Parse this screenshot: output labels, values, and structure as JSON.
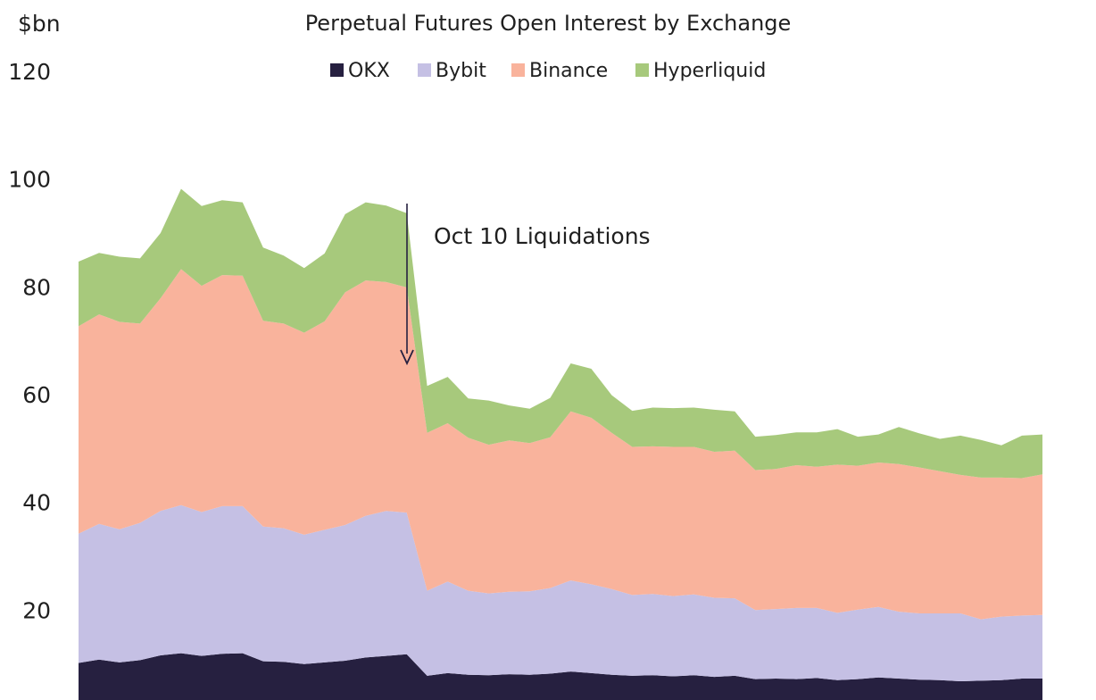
{
  "chart_data": {
    "type": "area",
    "stacked": true,
    "title": "Perpetual Futures Open Interest by Exchange",
    "ylabel": "$bn",
    "ylim": [
      0,
      120
    ],
    "yticks": [
      "20",
      "40",
      "60",
      "80",
      "100",
      "120"
    ],
    "ytick_values": [
      20,
      40,
      60,
      80,
      100,
      120
    ],
    "grid": false,
    "legend_position": "top-center",
    "annotation": {
      "text": "Oct 10 Liquidations",
      "arrow_to_index": 17,
      "arrow_to_value": 63
    },
    "series": [
      {
        "name": "OKX",
        "color": "#262040",
        "values": [
          10.2,
          10.8,
          10.3,
          10.7,
          11.6,
          12.0,
          11.5,
          11.9,
          12.0,
          10.5,
          10.4,
          10.0,
          10.3,
          10.6,
          11.2,
          11.5,
          11.8,
          7.8,
          8.3,
          8.0,
          7.9,
          8.1,
          8.0,
          8.2,
          8.6,
          8.3,
          8.0,
          7.8,
          7.9,
          7.7,
          7.9,
          7.6,
          7.8,
          7.2,
          7.3,
          7.2,
          7.4,
          7.0,
          7.2,
          7.5,
          7.3,
          7.1,
          7.0,
          6.8,
          6.9,
          7.0,
          7.3,
          7.3
        ]
      },
      {
        "name": "Bybit",
        "color": "#c5c0e4",
        "values": [
          24.0,
          25.2,
          24.7,
          25.5,
          26.8,
          27.5,
          26.7,
          27.4,
          27.3,
          25.0,
          24.8,
          24.0,
          24.6,
          25.2,
          26.3,
          26.9,
          26.3,
          15.8,
          17.0,
          15.6,
          15.2,
          15.3,
          15.5,
          15.9,
          16.9,
          16.5,
          15.9,
          15.0,
          15.1,
          14.9,
          15.0,
          14.7,
          14.4,
          12.8,
          12.9,
          13.2,
          13.0,
          12.5,
          12.9,
          13.1,
          12.4,
          12.3,
          12.4,
          12.6,
          11.4,
          11.8,
          11.7,
          11.8
        ]
      },
      {
        "name": "Binance",
        "color": "#f9b39c",
        "values": [
          38.5,
          38.9,
          38.5,
          37.0,
          39.5,
          43.8,
          42.0,
          42.9,
          42.8,
          38.2,
          38.0,
          37.5,
          38.7,
          43.2,
          43.7,
          42.5,
          41.8,
          29.3,
          29.4,
          28.4,
          27.6,
          28.1,
          27.5,
          28.0,
          31.4,
          30.9,
          29.0,
          27.5,
          27.4,
          27.7,
          27.4,
          27.1,
          27.4,
          26.0,
          26.0,
          26.5,
          26.2,
          27.5,
          26.7,
          26.8,
          27.4,
          27.1,
          26.4,
          25.7,
          26.3,
          25.8,
          25.5,
          26.1
        ]
      },
      {
        "name": "Hyperliquid",
        "color": "#a7c97c",
        "values": [
          12.0,
          11.4,
          12.1,
          12.1,
          12.1,
          14.9,
          14.8,
          13.9,
          13.6,
          13.6,
          12.6,
          12.0,
          12.6,
          14.5,
          14.5,
          14.2,
          13.8,
          8.7,
          8.6,
          7.3,
          8.2,
          6.5,
          6.4,
          7.3,
          8.9,
          9.1,
          7.0,
          6.7,
          7.2,
          7.2,
          7.3,
          7.8,
          7.3,
          6.2,
          6.3,
          6.1,
          6.4,
          6.6,
          5.4,
          5.2,
          6.9,
          6.3,
          6.0,
          7.3,
          7.0,
          6.0,
          7.9,
          7.4
        ]
      }
    ]
  }
}
